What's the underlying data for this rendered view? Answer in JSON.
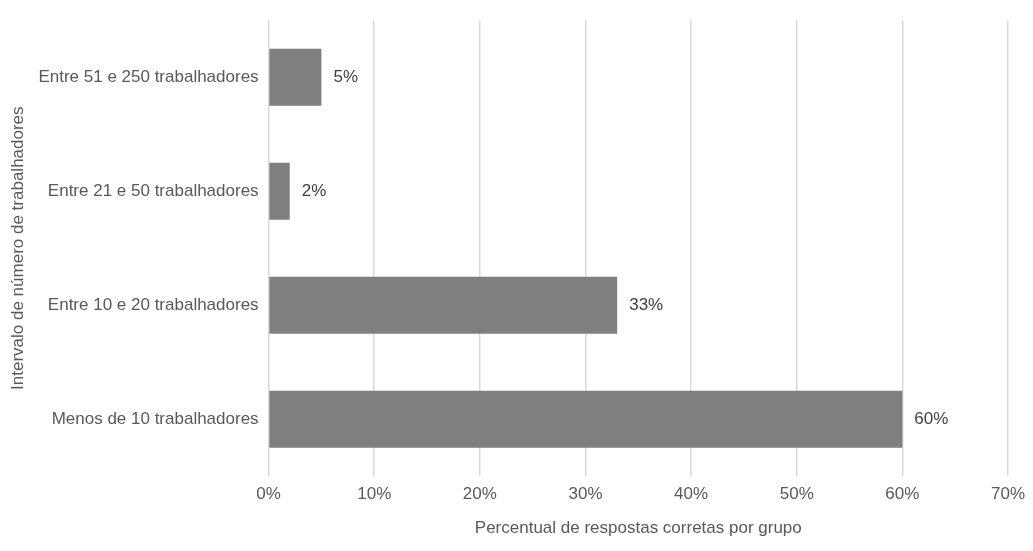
{
  "chart_data": {
    "type": "bar",
    "orientation": "horizontal",
    "xlabel": "Percentual de respostas corretas por grupo",
    "ylabel": "Intervalo de número de trabalhadores",
    "categories": [
      "Entre 51 e 250 trabalhadores",
      "Entre 21 e 50 trabalhadores",
      "Entre 10 e 20 trabalhadores",
      "Menos de 10 trabalhadores"
    ],
    "values": [
      5,
      2,
      33,
      60
    ],
    "color": "#7f7f7f",
    "value_labels": [
      "5%",
      "2%",
      "33%",
      "60%"
    ],
    "xlim": [
      0,
      70
    ],
    "xticks": [
      {
        "value": 0,
        "label": "0%"
      },
      {
        "value": 10,
        "label": "10%"
      },
      {
        "value": 20,
        "label": "20%"
      },
      {
        "value": 30,
        "label": "30%"
      },
      {
        "value": 40,
        "label": "40%"
      },
      {
        "value": 50,
        "label": "50%"
      },
      {
        "value": 60,
        "label": "60%"
      },
      {
        "value": 70,
        "label": "70%"
      }
    ],
    "grid": "x",
    "legend": false
  }
}
